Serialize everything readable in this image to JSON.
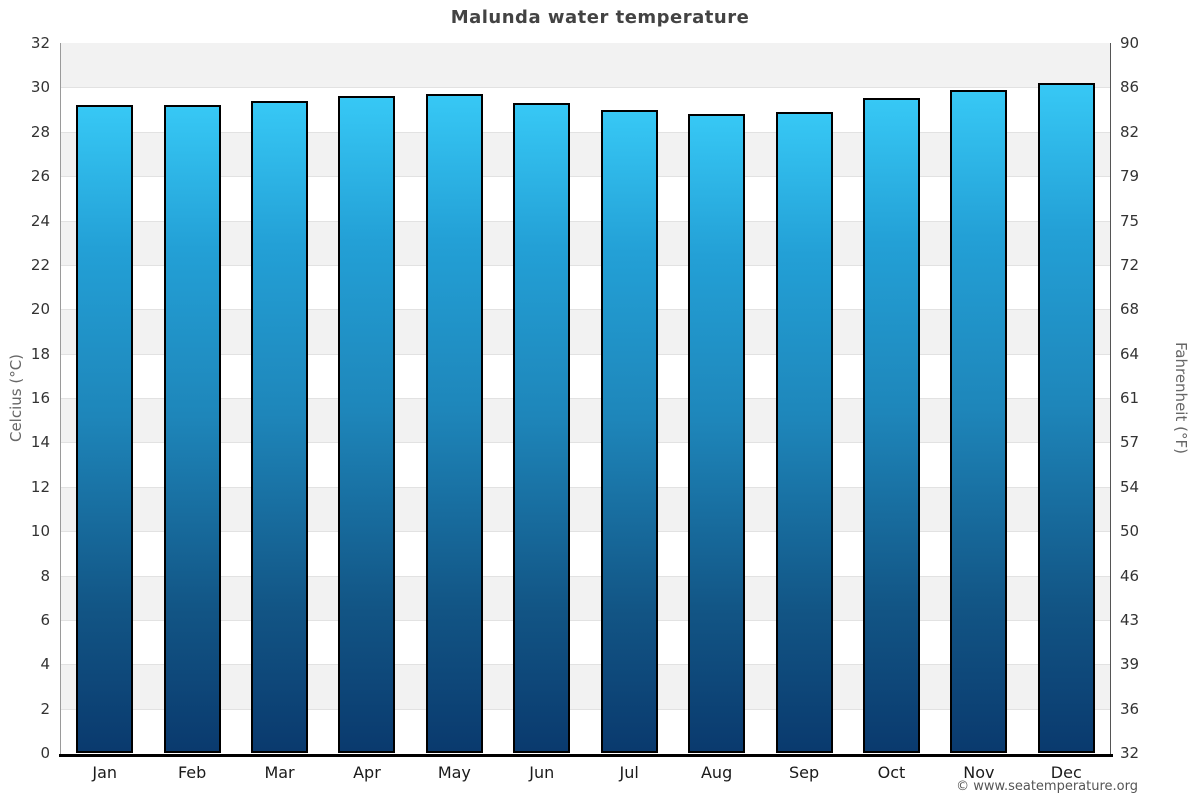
{
  "title": "Malunda water temperature",
  "footer": {
    "credit": "© www.seatemperature.org"
  },
  "axes": {
    "left_label": "Celcius (°C)",
    "right_label": "Fahrenheit (°F)",
    "left_ticks": [
      32,
      30,
      28,
      26,
      24,
      22,
      20,
      18,
      16,
      14,
      12,
      10,
      8,
      6,
      4,
      2,
      0
    ],
    "right_ticks": [
      90,
      86,
      82,
      79,
      75,
      72,
      68,
      64,
      61,
      57,
      54,
      50,
      46,
      43,
      39,
      36,
      32
    ]
  },
  "chart_data": {
    "type": "bar",
    "title": "Malunda water temperature",
    "categories": [
      "Jan",
      "Feb",
      "Mar",
      "Apr",
      "May",
      "Jun",
      "Jul",
      "Aug",
      "Sep",
      "Oct",
      "Nov",
      "Dec"
    ],
    "values": [
      29.2,
      29.2,
      29.4,
      29.6,
      29.7,
      29.3,
      29.0,
      28.8,
      28.9,
      29.5,
      29.9,
      30.2
    ],
    "unit": "°C",
    "xlabel": "",
    "ylabel": "Celcius (°C)",
    "ylabel_right": "Fahrenheit (°F)",
    "ylim": [
      0,
      32
    ],
    "y_tick_step": 2,
    "fahrenheit_tick_labels": [
      90,
      86,
      82,
      79,
      75,
      72,
      68,
      64,
      61,
      57,
      54,
      50,
      46,
      43,
      39,
      36,
      32
    ],
    "legend": "none",
    "grid": "horizontal bands every 2 degrees, alternating gray and white from top",
    "colors": {
      "bar_gradient_top": "#37c8f5",
      "bar_gradient_mid": "#1e86ba",
      "bar_gradient_bottom": "#0a3a6e",
      "bar_border": "#000000",
      "band_gray": "#f2f2f2",
      "band_white": "#ffffff",
      "axis_bottom": "#000000",
      "title_color": "#434343"
    }
  }
}
